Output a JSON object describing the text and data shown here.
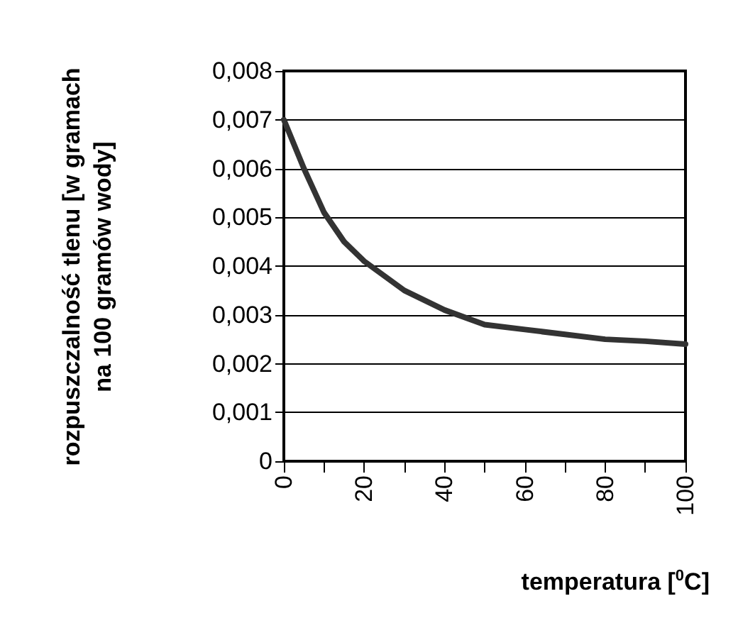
{
  "chart_data": {
    "type": "line",
    "xlabel": "temperatura [$^{0}$C]",
    "ylabel": "rozpuszczalność tlenu [w gramach na 100 gramów wody]",
    "x": [
      0,
      5,
      10,
      15,
      20,
      30,
      40,
      50,
      60,
      70,
      80,
      90,
      100
    ],
    "series": [
      {
        "color": "#333333",
        "values": [
          0.007,
          0.006,
          0.0051,
          0.0045,
          0.0041,
          0.0035,
          0.0031,
          0.0028,
          0.0027,
          0.0026,
          0.0025,
          0.00246,
          0.0024
        ]
      }
    ],
    "xlim": [
      0,
      100
    ],
    "xticks": [
      0,
      {
        "value": 10,
        "label": null
      },
      20,
      {
        "value": 30,
        "label": null
      },
      40,
      {
        "value": 50,
        "label": null
      },
      60,
      {
        "value": 70,
        "label": null
      },
      80,
      {
        "value": 90,
        "label": null
      },
      100
    ],
    "ylim": [
      0,
      0.008
    ],
    "yticks": [
      0,
      {
        "value": 0.001,
        "label": "0,001"
      },
      {
        "value": 0.002,
        "label": "0,002"
      },
      {
        "value": 0.003,
        "label": "0,003"
      },
      {
        "value": 0.004,
        "label": "0,004"
      },
      {
        "value": 0.005,
        "label": "0,005"
      },
      {
        "value": 0.006,
        "label": "0,006"
      },
      {
        "value": 0.007,
        "label": "0,007"
      },
      {
        "value": 0.008,
        "label": "0,008"
      }
    ],
    "grid": "y",
    "marker": "none",
    "line_style": "solid"
  }
}
